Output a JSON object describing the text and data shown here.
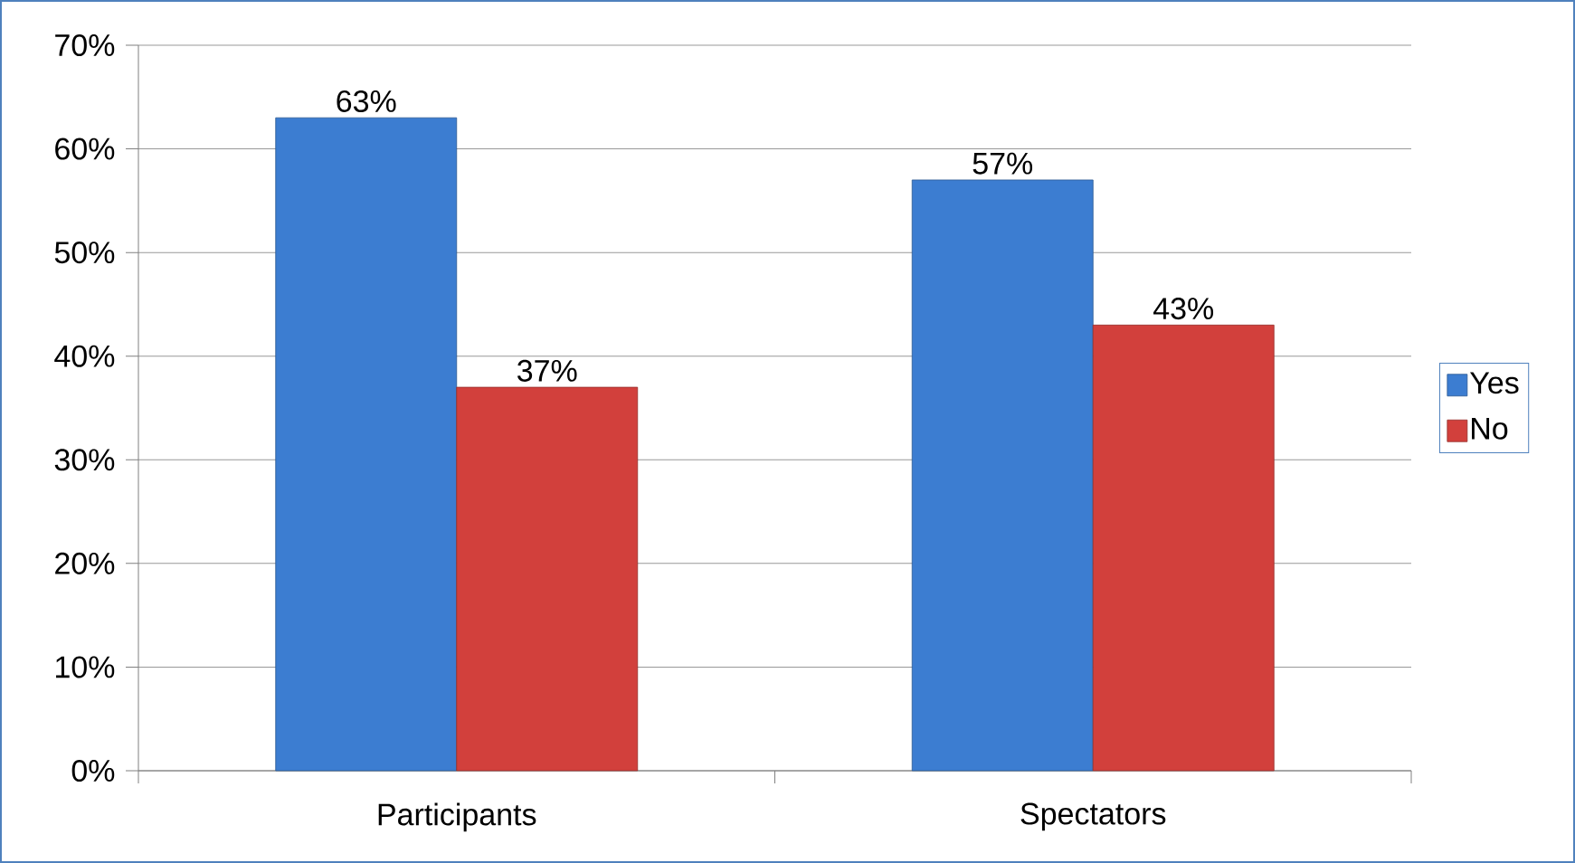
{
  "chart_data": {
    "type": "bar",
    "categories": [
      "Participants",
      "Spectators"
    ],
    "series": [
      {
        "name": "Yes",
        "color": "#3c7dd1",
        "values": [
          63,
          57
        ],
        "value_labels": [
          "63%",
          "57%"
        ]
      },
      {
        "name": "No",
        "color": "#d2403c",
        "values": [
          37,
          43
        ],
        "value_labels": [
          "37%",
          "43%"
        ]
      }
    ],
    "ylim": [
      0,
      70
    ],
    "yticks": [
      {
        "value": 0,
        "label": "0%"
      },
      {
        "value": 10,
        "label": "10%"
      },
      {
        "value": 20,
        "label": "20%"
      },
      {
        "value": 30,
        "label": "30%"
      },
      {
        "value": 40,
        "label": "40%"
      },
      {
        "value": 50,
        "label": "50%"
      },
      {
        "value": 60,
        "label": "60%"
      },
      {
        "value": 70,
        "label": "70%"
      }
    ],
    "grid": "y",
    "legend": "right"
  }
}
